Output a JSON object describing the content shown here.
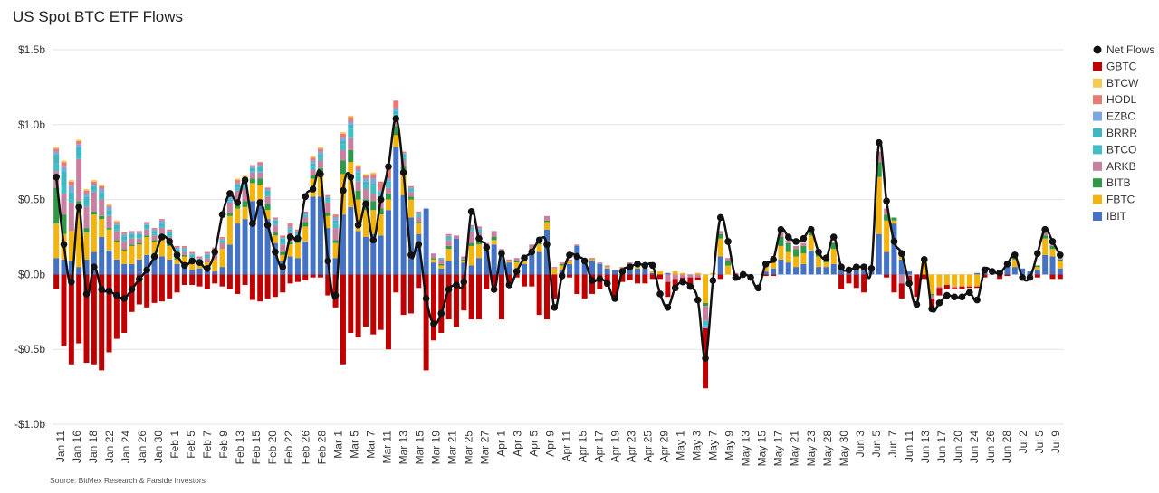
{
  "title": "US Spot BTC ETF Flows",
  "source": "Source: BitMex Research & Farside Investors",
  "chart_data": {
    "type": "bar",
    "stacked": true,
    "overlay": "line",
    "title": "US Spot BTC ETF Flows",
    "xlabel": "",
    "ylabel": "",
    "ylim": [
      -1.0,
      1.5
    ],
    "yunit": "$b",
    "ytick_values": [
      -1.0,
      -0.5,
      0.0,
      0.5,
      1.0,
      1.5
    ],
    "ytick_labels": [
      "-$1.0b",
      "-$0.5b",
      "$0.0b",
      "$0.5b",
      "$1.0b",
      "$1.5b"
    ],
    "grid": "horizontal",
    "legend_position": "right",
    "colors": {
      "Net Flows": "#111111",
      "GBTC": "#c00000",
      "BTCW": "#f5cc50",
      "HODL": "#e77a76",
      "EZBC": "#7ba7e3",
      "BRRR": "#3fb6c0",
      "BTCO": "#40bfc6",
      "ARKB": "#c7809f",
      "BITB": "#2e9a47",
      "FBTC": "#f3b50d",
      "IBIT": "#4472c4"
    },
    "legend": [
      "Net Flows",
      "GBTC",
      "BTCW",
      "HODL",
      "EZBC",
      "BRRR",
      "BTCO",
      "ARKB",
      "BITB",
      "FBTC",
      "IBIT"
    ],
    "categories": [
      "Jan 11",
      "Jan 16",
      "Jan 18",
      "Jan 22",
      "Jan 24",
      "Jan 26",
      "Jan 30",
      "Feb 1",
      "Feb 5",
      "Feb 7",
      "Feb 9",
      "Feb 13",
      "Feb 15",
      "Feb 20",
      "Feb 22",
      "Feb 26",
      "Feb 28",
      "Mar 1",
      "Mar 5",
      "Mar 7",
      "Mar 11",
      "Mar 13",
      "Mar 15",
      "Mar 19",
      "Mar 21",
      "Mar 25",
      "Mar 27",
      "Apr 1",
      "Apr 3",
      "Apr 5",
      "Apr 9",
      "Apr 11",
      "Apr 15",
      "Apr 17",
      "Apr 19",
      "Apr 23",
      "Apr 25",
      "Apr 29",
      "May 1",
      "May 3",
      "May 7",
      "May 9",
      "May 13",
      "May 15",
      "May 17",
      "May 21",
      "May 23",
      "May 28",
      "May 30",
      "Jun 3",
      "Jun 5",
      "Jun 7",
      "Jun 11",
      "Jun 13",
      "Jun 17",
      "Jun 20",
      "Jun 24",
      "Jun 26",
      "Jun 28",
      "Jul 2",
      "Jul 5",
      "Jul 9"
    ],
    "net_flows": [
      0.65,
      0.2,
      -0.05,
      0.45,
      -0.13,
      0.05,
      -0.1,
      -0.11,
      -0.14,
      -0.16,
      -0.1,
      -0.03,
      0.03,
      0.12,
      0.25,
      0.22,
      0.13,
      0.06,
      0.09,
      0.08,
      0.04,
      0.15,
      0.4,
      0.54,
      0.48,
      0.63,
      0.34,
      0.48,
      0.33,
      0.15,
      0.05,
      0.25,
      0.24,
      0.52,
      0.57,
      0.67,
      0.09,
      -0.14,
      0.56,
      0.65,
      0.33,
      0.47,
      0.23,
      0.5,
      0.72,
      1.04,
      0.68,
      0.13,
      0.2,
      -0.16,
      -0.33,
      -0.26,
      -0.1,
      -0.07,
      -0.05,
      0.42,
      0.24,
      0.18,
      -0.1,
      0.14,
      -0.07,
      0.02,
      0.11,
      0.15,
      0.23,
      0.2,
      -0.22,
      -0.01,
      0.13,
      0.12,
      0.09,
      -0.04,
      -0.03,
      -0.06,
      -0.16,
      0.02,
      0.05,
      0.07,
      0.06,
      0.06,
      -0.13,
      -0.22,
      -0.09,
      -0.05,
      -0.08,
      -0.17,
      -0.56,
      -0.04,
      0.38,
      0.22,
      -0.02,
      0.0,
      -0.02,
      -0.09,
      0.07,
      0.1,
      0.3,
      0.25,
      0.22,
      0.24,
      0.3,
      0.15,
      0.11,
      0.25,
      0.05,
      0.03,
      0.05,
      0.05,
      0.04,
      0.88,
      0.49,
      0.22,
      0.14,
      -0.06,
      -0.2,
      0.1,
      -0.23,
      -0.19,
      -0.14,
      -0.15,
      -0.15,
      -0.12,
      -0.17,
      0.03,
      0.02,
      0.01,
      0.07,
      0.13,
      -0.02,
      -0.02,
      0.14,
      0.3,
      0.22,
      0.13
    ],
    "gbtc": [
      -0.1,
      -0.48,
      -0.6,
      -0.46,
      -0.59,
      -0.6,
      -0.64,
      -0.52,
      -0.43,
      -0.39,
      -0.25,
      -0.2,
      -0.22,
      -0.19,
      -0.18,
      -0.16,
      -0.12,
      -0.07,
      -0.07,
      -0.08,
      -0.1,
      -0.06,
      -0.08,
      -0.1,
      -0.13,
      -0.07,
      -0.17,
      -0.18,
      -0.16,
      -0.15,
      -0.12,
      -0.06,
      -0.05,
      -0.04,
      -0.02,
      -0.02,
      -0.14,
      -0.22,
      -0.6,
      -0.39,
      -0.42,
      -0.35,
      -0.4,
      -0.37,
      -0.5,
      -0.12,
      -0.27,
      -0.26,
      -0.09,
      -0.64,
      -0.44,
      -0.39,
      -0.3,
      -0.35,
      -0.24,
      -0.3,
      -0.3,
      -0.1,
      -0.08,
      -0.3,
      -0.08,
      -0.02,
      -0.08,
      -0.08,
      -0.27,
      -0.3,
      -0.16,
      -0.02,
      -0.02,
      -0.13,
      -0.16,
      -0.13,
      -0.1,
      -0.08,
      -0.17,
      -0.05,
      -0.04,
      -0.06,
      -0.06,
      -0.03,
      -0.03,
      -0.1,
      -0.08,
      -0.04,
      -0.05,
      -0.02,
      -0.4,
      0.0,
      -0.03,
      0.0,
      -0.01,
      0.0,
      0.0,
      0.0,
      -0.01,
      -0.01,
      0.0,
      0.0,
      0.0,
      0.0,
      0.0,
      0.0,
      0.0,
      0.0,
      -0.1,
      -0.06,
      -0.09,
      -0.12,
      0.0,
      0.0,
      -0.02,
      -0.12,
      -0.1,
      -0.06,
      -0.15,
      -0.03,
      -0.06,
      -0.05,
      -0.03,
      -0.01,
      -0.02,
      -0.01,
      -0.01,
      -0.02,
      0.0,
      -0.03,
      -0.01,
      0.0,
      0.0,
      -0.02,
      -0.02,
      0.0,
      -0.03,
      -0.03,
      0.0
    ],
    "ibit": [
      0.11,
      0.1,
      0.09,
      0.05,
      0.1,
      0.15,
      0.25,
      0.16,
      0.1,
      0.07,
      0.07,
      0.1,
      0.13,
      0.11,
      0.12,
      0.1,
      0.07,
      0.05,
      0.03,
      0.04,
      0.03,
      0.02,
      0.05,
      0.2,
      0.34,
      0.37,
      0.49,
      0.5,
      0.37,
      0.21,
      0.09,
      0.12,
      0.11,
      0.22,
      0.52,
      0.52,
      0.31,
      0.11,
      0.4,
      0.45,
      0.29,
      0.25,
      0.27,
      0.26,
      0.43,
      0.85,
      0.53,
      0.38,
      0.27,
      0.44,
      0.08,
      0.04,
      0.09,
      0.24,
      0.08,
      0.06,
      0.11,
      0.16,
      0.2,
      0.12,
      0.08,
      0.04,
      0.07,
      0.13,
      0.15,
      0.3,
      0.0,
      0.03,
      0.07,
      0.19,
      0.1,
      0.09,
      0.07,
      0.04,
      0.03,
      0.02,
      0.04,
      0.04,
      0.04,
      0.01,
      0.0,
      0.01,
      0.0,
      0.0,
      0.0,
      0.0,
      0.0,
      0.0,
      0.12,
      0.0,
      0.0,
      0.0,
      0.0,
      0.0,
      0.02,
      0.04,
      0.1,
      0.08,
      0.05,
      0.07,
      0.16,
      0.05,
      0.05,
      0.07,
      0.04,
      0.03,
      0.03,
      0.03,
      0.04,
      0.27,
      0.15,
      0.34,
      0.1,
      0.02,
      0.0,
      0.0,
      0.0,
      0.0,
      0.0,
      0.0,
      0.0,
      0.0,
      0.01,
      0.02,
      0.01,
      0.03,
      0.06,
      0.05,
      0.04,
      0.02,
      0.03,
      0.13,
      0.12,
      0.04
    ],
    "fbtc": [
      0.23,
      0.17,
      0.2,
      0.41,
      0.18,
      0.25,
      0.12,
      0.14,
      0.12,
      0.09,
      0.12,
      0.1,
      0.12,
      0.11,
      0.13,
      0.09,
      0.03,
      0.07,
      0.06,
      0.02,
      0.05,
      0.08,
      0.12,
      0.19,
      0.1,
      0.08,
      0.12,
      0.1,
      0.06,
      0.05,
      0.04,
      0.08,
      0.1,
      0.1,
      0.12,
      0.15,
      0.08,
      0.1,
      0.27,
      0.3,
      0.21,
      0.18,
      0.16,
      0.14,
      0.07,
      0.08,
      0.16,
      0.12,
      0.07,
      0.0,
      0.02,
      0.02,
      0.08,
      0.0,
      0.01,
      0.13,
      0.09,
      0.01,
      0.03,
      0.0,
      0.01,
      0.04,
      0.02,
      0.03,
      0.05,
      0.05,
      0.04,
      0.03,
      0.02,
      0.0,
      0.0,
      0.01,
      0.0,
      0.01,
      0.0,
      0.02,
      0.03,
      0.02,
      0.02,
      0.01,
      0.02,
      0.0,
      0.02,
      0.01,
      0.0,
      0.01,
      -0.19,
      0.01,
      0.12,
      0.06,
      0.0,
      0.01,
      0.0,
      0.0,
      0.03,
      0.05,
      0.09,
      0.07,
      0.07,
      0.07,
      0.1,
      0.07,
      0.03,
      0.1,
      0.01,
      0.01,
      0.01,
      0.01,
      0.01,
      0.38,
      0.21,
      0.02,
      0.02,
      0.0,
      0.0,
      0.1,
      -0.13,
      -0.08,
      -0.07,
      -0.08,
      -0.08,
      -0.08,
      -0.08,
      0.0,
      0.0,
      0.0,
      0.01,
      0.05,
      0.0,
      0.0,
      0.02,
      0.11,
      0.05,
      0.05
    ],
    "bitb": [
      0.24,
      0.13,
      0.0,
      0.03,
      0.03,
      0.02,
      0.02,
      0.01,
      0.01,
      0.01,
      0.01,
      0.01,
      0.01,
      0.01,
      0.01,
      0.02,
      0.02,
      0.01,
      0.0,
      0.0,
      0.0,
      0.0,
      0.0,
      0.02,
      0.04,
      0.04,
      0.03,
      0.04,
      0.04,
      0.02,
      0.02,
      0.02,
      0.03,
      0.03,
      0.02,
      0.04,
      0.02,
      0.02,
      0.09,
      0.08,
      0.06,
      0.07,
      0.06,
      0.04,
      0.04,
      0.06,
      0.03,
      0.02,
      0.01,
      0.0,
      0.01,
      0.01,
      0.02,
      0.0,
      0.01,
      0.02,
      0.02,
      0.0,
      0.02,
      0.02,
      0.0,
      0.01,
      0.01,
      0.01,
      0.01,
      0.01,
      0.0,
      0.01,
      0.0,
      0.0,
      0.0,
      0.0,
      0.0,
      0.0,
      0.0,
      0.0,
      0.0,
      0.01,
      0.01,
      0.0,
      0.0,
      0.0,
      0.0,
      0.0,
      0.0,
      0.0,
      -0.02,
      0.0,
      0.03,
      0.03,
      0.0,
      0.0,
      0.0,
      0.0,
      0.01,
      0.0,
      0.06,
      0.06,
      0.05,
      0.05,
      0.02,
      0.02,
      0.01,
      0.04,
      0.0,
      0.0,
      0.0,
      0.0,
      0.0,
      0.1,
      0.04,
      0.02,
      0.01,
      0.0,
      0.0,
      0.0,
      -0.01,
      0.0,
      0.0,
      0.0,
      0.0,
      0.0,
      0.0,
      0.0,
      0.0,
      0.0,
      0.0,
      0.02,
      0.0,
      0.0,
      0.01,
      0.02,
      0.02,
      0.01
    ],
    "arkb": [
      0.11,
      0.14,
      0.19,
      0.28,
      0.14,
      0.13,
      0.11,
      0.08,
      0.06,
      0.05,
      0.04,
      0.03,
      0.04,
      0.03,
      0.05,
      0.04,
      0.03,
      0.02,
      0.02,
      0.02,
      0.03,
      0.04,
      0.04,
      0.07,
      0.08,
      0.08,
      0.04,
      0.04,
      0.05,
      0.05,
      0.05,
      0.06,
      0.02,
      0.03,
      0.04,
      0.05,
      0.07,
      0.08,
      0.07,
      0.08,
      0.06,
      0.07,
      0.05,
      0.06,
      0.04,
      0.06,
      0.04,
      0.03,
      0.03,
      0.0,
      0.03,
      0.03,
      0.04,
      0.02,
      0.02,
      0.08,
      0.06,
      0.04,
      0.04,
      0.03,
      0.01,
      0.02,
      0.02,
      0.03,
      0.03,
      0.03,
      0.01,
      0.01,
      0.01,
      0.01,
      0.0,
      0.01,
      0.01,
      0.01,
      0.0,
      0.01,
      0.01,
      0.01,
      0.0,
      0.0,
      0.0,
      -0.05,
      -0.03,
      -0.02,
      -0.02,
      -0.02,
      -0.1,
      0.0,
      0.02,
      0.02,
      0.01,
      0.0,
      -0.01,
      0.0,
      0.01,
      0.01,
      0.03,
      0.02,
      0.02,
      0.02,
      0.01,
      0.01,
      0.01,
      0.01,
      0.0,
      0.0,
      0.0,
      0.01,
      0.0,
      0.07,
      0.04,
      0.0,
      -0.06,
      -0.01,
      0.0,
      0.0,
      -0.02,
      -0.01,
      0.0,
      -0.01,
      0.0,
      0.0,
      0.0,
      0.0,
      0.0,
      0.0,
      0.0,
      0.01,
      0.0,
      0.0,
      0.0,
      0.02,
      0.02,
      0.01
    ],
    "brrr": [
      0.06,
      0.09,
      0.05,
      0.06,
      0.05,
      0.03,
      0.04,
      0.03,
      0.03,
      0.02,
      0.02,
      0.02,
      0.02,
      0.02,
      0.02,
      0.02,
      0.01,
      0.01,
      0.01,
      0.01,
      0.01,
      0.01,
      0.01,
      0.01,
      0.02,
      0.02,
      0.02,
      0.03,
      0.02,
      0.02,
      0.02,
      0.01,
      0.01,
      0.01,
      0.02,
      0.02,
      0.01,
      0.02,
      0.02,
      0.03,
      0.02,
      0.02,
      0.02,
      0.02,
      0.01,
      0.02,
      0.02,
      0.01,
      0.01,
      0.0,
      0.0,
      0.01,
      0.01,
      0.0,
      0.0,
      0.01,
      0.01,
      0.0,
      0.0,
      0.0,
      0.0,
      0.0,
      0.0,
      0.0,
      0.01,
      0.0,
      0.0,
      0.0,
      0.0,
      0.0,
      0.0,
      0.0,
      0.0,
      0.0,
      0.0,
      0.0,
      0.0,
      0.0,
      0.0,
      0.0,
      0.0,
      0.0,
      0.0,
      0.0,
      0.0,
      0.0,
      0.0,
      0.0,
      0.0,
      0.0,
      0.0,
      0.0,
      0.0,
      0.0,
      0.0,
      0.0,
      0.0,
      0.0,
      0.0,
      0.0,
      0.0,
      0.0,
      0.0,
      0.0,
      0.0,
      0.0,
      0.0,
      0.0,
      0.0,
      0.0,
      0.0,
      0.0,
      0.0,
      0.0,
      0.0,
      0.0,
      0.0,
      0.0,
      0.0,
      0.0,
      0.0,
      0.0,
      0.0,
      0.0,
      0.0,
      0.0,
      0.0,
      0.0,
      0.0,
      0.0,
      0.0,
      0.0,
      0.0,
      0.0,
      0.0
    ],
    "btco": [
      0.05,
      0.06,
      0.02,
      0.02,
      0.02,
      0.01,
      0.01,
      0.01,
      0.01,
      0.01,
      0.01,
      0.01,
      0.01,
      0.01,
      0.01,
      0.01,
      0.01,
      0.01,
      0.01,
      0.01,
      0.01,
      0.01,
      0.01,
      0.01,
      0.02,
      0.02,
      0.01,
      0.01,
      0.02,
      0.01,
      0.02,
      0.01,
      0.01,
      0.01,
      0.02,
      0.02,
      0.02,
      0.03,
      0.04,
      0.06,
      0.04,
      0.03,
      0.05,
      0.03,
      0.03,
      0.02,
      0.02,
      0.01,
      0.01,
      0.0,
      0.0,
      0.0,
      0.01,
      0.0,
      0.0,
      0.01,
      0.01,
      0.0,
      0.0,
      0.0,
      0.0,
      0.0,
      0.0,
      0.0,
      0.0,
      0.0,
      0.0,
      0.0,
      0.0,
      0.0,
      0.0,
      0.0,
      0.0,
      0.0,
      0.0,
      0.0,
      0.0,
      0.0,
      0.0,
      0.0,
      0.0,
      0.0,
      0.0,
      0.0,
      0.0,
      0.0,
      -0.03,
      0.0,
      0.0,
      0.0,
      0.0,
      0.0,
      0.0,
      0.0,
      0.0,
      0.0,
      0.0,
      0.0,
      0.0,
      0.0,
      0.0,
      0.0,
      0.0,
      0.0,
      0.0,
      0.0,
      0.0,
      0.0,
      0.0,
      0.0,
      0.0,
      0.0,
      0.0,
      0.0,
      0.0,
      0.0,
      0.0,
      0.0,
      0.0,
      0.0,
      0.0,
      0.0,
      0.0,
      0.0,
      0.0,
      0.0,
      0.0,
      0.0,
      0.0,
      0.0,
      0.0,
      0.0,
      0.0,
      0.0
    ],
    "ezbc": [
      0.02,
      0.03,
      0.04,
      0.02,
      0.02,
      0.01,
      0.02,
      0.02,
      0.01,
      0.02,
      0.01,
      0.01,
      0.01,
      0.01,
      0.02,
      0.01,
      0.01,
      0.01,
      0.01,
      0.01,
      0.01,
      0.01,
      0.01,
      0.02,
      0.01,
      0.02,
      0.01,
      0.01,
      0.01,
      0.01,
      0.01,
      0.02,
      0.01,
      0.01,
      0.02,
      0.02,
      0.01,
      0.02,
      0.02,
      0.02,
      0.02,
      0.02,
      0.03,
      0.01,
      0.02,
      0.02,
      0.01,
      0.01,
      0.01,
      0.0,
      0.0,
      0.0,
      0.01,
      0.0,
      0.0,
      0.01,
      0.01,
      0.0,
      0.0,
      0.0,
      0.0,
      0.0,
      0.0,
      0.0,
      0.0,
      0.0,
      0.0,
      0.0,
      0.0,
      0.0,
      0.0,
      0.0,
      0.0,
      0.0,
      0.0,
      0.0,
      0.0,
      0.0,
      0.0,
      0.0,
      0.0,
      0.0,
      0.0,
      0.0,
      0.0,
      0.0,
      -0.02,
      0.0,
      0.0,
      0.0,
      0.0,
      0.0,
      0.0,
      0.0,
      0.0,
      0.0,
      0.0,
      0.0,
      0.0,
      0.0,
      0.0,
      0.0,
      0.0,
      0.0,
      0.0,
      0.0,
      0.0,
      0.0,
      0.0,
      0.0,
      0.0,
      0.0,
      0.0,
      0.0,
      0.0,
      0.0,
      0.0,
      0.0,
      0.0,
      0.0,
      0.0,
      0.0,
      0.0,
      0.0,
      0.0,
      0.0,
      0.0,
      0.0,
      0.0,
      0.0,
      0.0,
      0.0,
      0.0,
      0.0,
      0.0
    ],
    "hodl": [
      0.02,
      0.03,
      0.03,
      0.02,
      0.02,
      0.02,
      0.02,
      0.01,
      0.01,
      0.01,
      0.01,
      0.01,
      0.01,
      0.01,
      0.01,
      0.01,
      0.01,
      0.01,
      0.01,
      0.01,
      0.01,
      0.01,
      0.01,
      0.02,
      0.02,
      0.02,
      0.01,
      0.02,
      0.01,
      0.01,
      0.01,
      0.02,
      0.01,
      0.01,
      0.02,
      0.02,
      0.01,
      0.02,
      0.03,
      0.03,
      0.02,
      0.02,
      0.03,
      0.06,
      0.08,
      0.05,
      0.01,
      0.01,
      0.01,
      0.0,
      0.0,
      0.0,
      0.01,
      0.0,
      0.0,
      0.01,
      0.01,
      0.0,
      0.0,
      0.0,
      0.0,
      0.0,
      0.0,
      0.0,
      0.0,
      0.0,
      0.0,
      0.0,
      0.0,
      0.0,
      0.0,
      0.0,
      0.0,
      0.0,
      0.0,
      0.0,
      0.0,
      0.0,
      0.0,
      0.0,
      0.0,
      0.0,
      0.0,
      0.0,
      0.0,
      0.0,
      0.0,
      0.0,
      0.0,
      0.0,
      0.0,
      0.0,
      0.0,
      0.0,
      0.0,
      0.0,
      0.0,
      0.0,
      0.0,
      0.0,
      0.0,
      0.0,
      0.0,
      0.0,
      0.0,
      0.0,
      0.0,
      0.0,
      0.0,
      0.0,
      0.0,
      0.0,
      0.0,
      0.0,
      0.0,
      0.0,
      0.0,
      0.0,
      0.0,
      0.0,
      0.0,
      0.0,
      0.0,
      0.0,
      0.0,
      0.0,
      0.0,
      0.0,
      0.0,
      0.0,
      0.0,
      0.0,
      0.0,
      0.0,
      0.0
    ],
    "btcw": [
      0.01,
      0.01,
      0.01,
      0.01,
      0.01,
      0.01,
      0.01,
      0.01,
      0.01,
      0.0,
      0.0,
      0.0,
      0.0,
      0.0,
      0.0,
      0.0,
      0.0,
      0.0,
      0.0,
      0.0,
      0.0,
      0.0,
      0.0,
      0.01,
      0.01,
      0.01,
      0.0,
      0.0,
      0.0,
      0.0,
      0.0,
      0.0,
      0.0,
      0.0,
      0.01,
      0.01,
      0.0,
      0.0,
      0.01,
      0.01,
      0.01,
      0.01,
      0.01,
      0.0,
      0.0,
      0.0,
      0.0,
      0.0,
      0.0,
      0.0,
      0.0,
      0.0,
      0.0,
      0.0,
      0.0,
      0.0,
      0.0,
      0.0,
      0.0,
      0.0,
      0.0,
      0.0,
      0.0,
      0.0,
      0.0,
      0.0,
      0.0,
      0.0,
      0.0,
      0.0,
      0.0,
      0.0,
      0.0,
      0.0,
      0.0,
      0.0,
      0.0,
      0.0,
      0.0,
      0.0,
      0.0,
      0.0,
      0.0,
      0.0,
      0.0,
      0.0,
      0.0,
      0.0,
      0.0,
      0.0,
      0.0,
      0.0,
      0.0,
      0.0,
      0.0,
      0.0,
      0.0,
      0.0,
      0.0,
      0.0,
      0.0,
      0.0,
      0.0,
      0.0,
      0.0,
      0.0,
      0.0,
      0.0,
      0.0,
      0.0,
      0.0,
      0.0,
      0.0,
      0.0,
      0.0,
      0.0,
      0.0,
      0.0,
      0.0,
      0.0,
      0.0,
      0.0,
      0.0,
      0.0,
      0.0,
      0.0,
      0.0,
      0.0,
      0.0,
      0.0,
      0.0,
      0.0,
      0.0,
      0.0,
      0.0
    ]
  }
}
